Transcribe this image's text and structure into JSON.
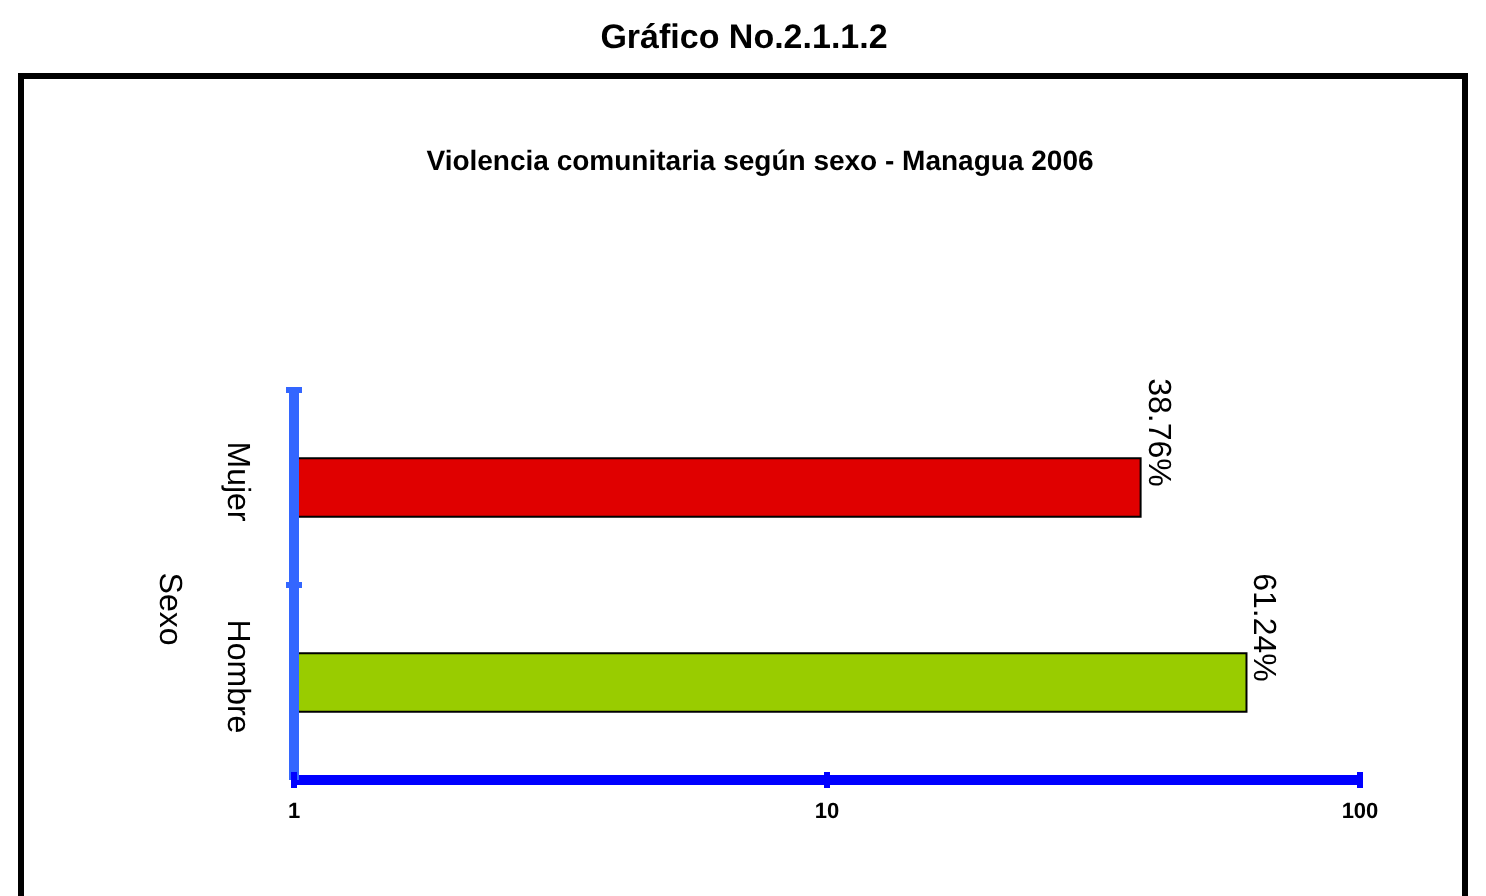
{
  "chart_data": {
    "type": "bar",
    "title": "Gráfico No.2.1.1.2",
    "subtitle": "Violencia comunitaria según sexo - Managua 2006",
    "ylabel": "Sexo",
    "orientation": "horizontal",
    "log": "x",
    "categories": [
      "Mujer",
      "Hombre"
    ],
    "values": [
      38.76,
      61.24
    ],
    "colors": [
      "#e00000",
      "#99cc00"
    ],
    "value_labels": [
      "38.76%",
      "61.24%"
    ],
    "xlim": [
      1,
      100
    ],
    "xticks": [
      1,
      10,
      100
    ],
    "grid": false,
    "legend": false
  }
}
